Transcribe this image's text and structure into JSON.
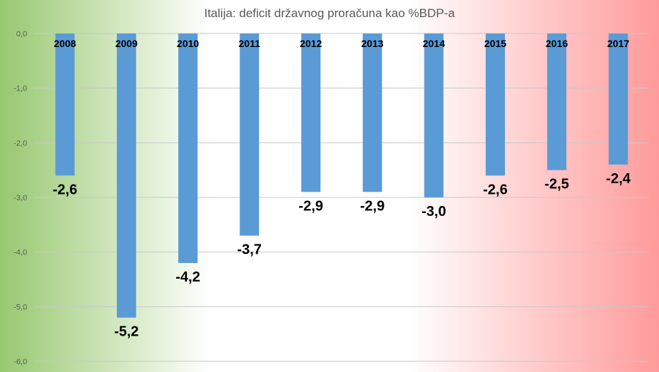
{
  "chart_data": {
    "type": "bar",
    "title": "Italija: deficit državnog proračuna kao %BDP-a",
    "categories": [
      "2008",
      "2009",
      "2010",
      "2011",
      "2012",
      "2013",
      "2014",
      "2015",
      "2016",
      "2017"
    ],
    "values": [
      -2.6,
      -5.2,
      -4.2,
      -3.7,
      -2.9,
      -2.9,
      -3.0,
      -2.6,
      -2.5,
      -2.4
    ],
    "data_labels": [
      "-2,6",
      "-5,2",
      "-4,2",
      "-3,7",
      "-2,9",
      "-2,9",
      "-3,0",
      "-2,6",
      "-2,5",
      "-2,4"
    ],
    "y_ticks": [
      0,
      -1,
      -2,
      -3,
      -4,
      -5,
      -6
    ],
    "y_tick_labels": [
      "0,0",
      "-1,0",
      "-2,0",
      "-3,0",
      "-4,0",
      "-5,0",
      "-6,0"
    ],
    "ylim": [
      -6,
      0
    ],
    "xlabel": "",
    "ylabel": "",
    "grid": true,
    "legend": "none",
    "colors": {
      "bar": "#5b9bd5",
      "background_left": "#98c870",
      "background_center": "#ffffff",
      "background_right": "#ff9a9a",
      "gridline": "#c8c8c8",
      "title": "#595959",
      "axis_text": "#595959",
      "label_text": "#000000"
    }
  }
}
